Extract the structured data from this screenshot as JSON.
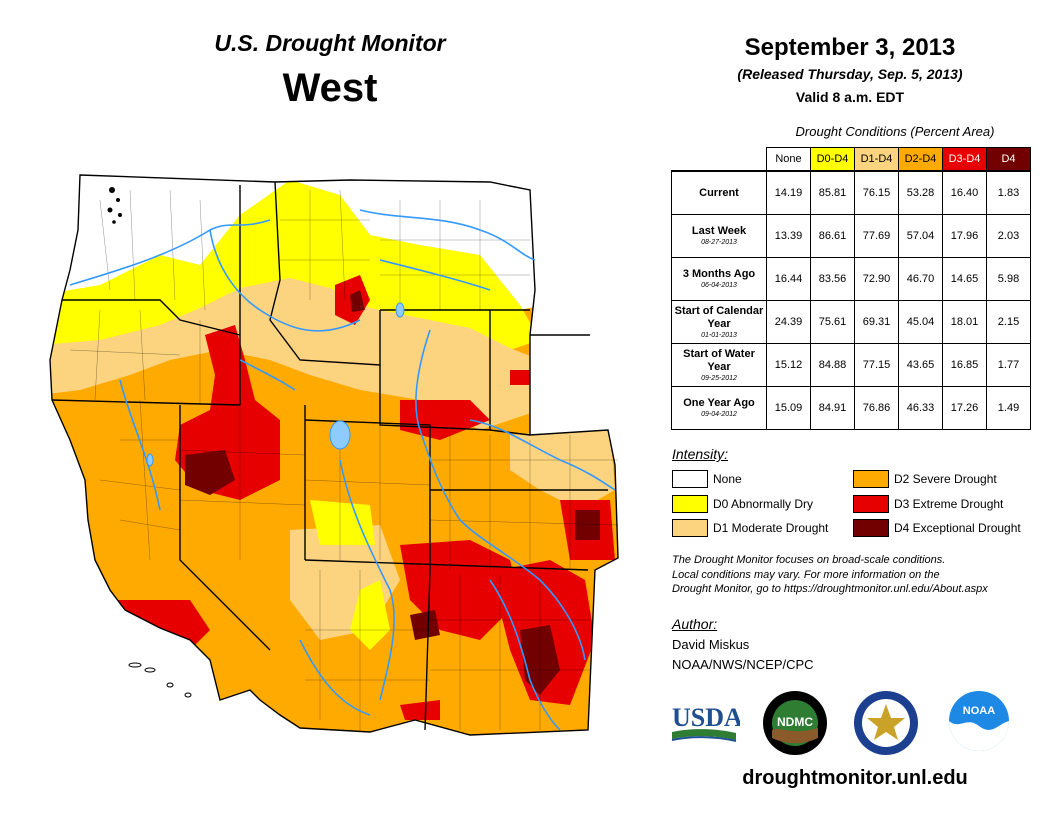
{
  "header": {
    "product": "U.S. Drought Monitor",
    "region": "West",
    "date": "September 3, 2013",
    "released": "(Released Thursday, Sep. 5, 2013)",
    "valid": "Valid 8 a.m. EDT"
  },
  "table": {
    "caption": "Drought Conditions (Percent Area)",
    "columns": [
      "None",
      "D0-D4",
      "D1-D4",
      "D2-D4",
      "D3-D4",
      "D4"
    ],
    "column_colors": [
      "#ffffff",
      "#ffff00",
      "#fcd37f",
      "#ffaa00",
      "#e60000",
      "#730000"
    ],
    "column_text_colors": [
      "#000000",
      "#000000",
      "#000000",
      "#000000",
      "#ffffff",
      "#ffffff"
    ],
    "rows": [
      {
        "label": "Current",
        "date": "",
        "values": [
          "14.19",
          "85.81",
          "76.15",
          "53.28",
          "16.40",
          "1.83"
        ]
      },
      {
        "label": "Last Week",
        "date": "08-27-2013",
        "values": [
          "13.39",
          "86.61",
          "77.69",
          "57.04",
          "17.96",
          "2.03"
        ]
      },
      {
        "label": "3 Months Ago",
        "date": "06-04-2013",
        "values": [
          "16.44",
          "83.56",
          "72.90",
          "46.70",
          "14.65",
          "5.98"
        ]
      },
      {
        "label": "Start of Calendar Year",
        "date": "01-01-2013",
        "values": [
          "24.39",
          "75.61",
          "69.31",
          "45.04",
          "18.01",
          "2.15"
        ]
      },
      {
        "label": "Start of Water Year",
        "date": "09-25-2012",
        "values": [
          "15.12",
          "84.88",
          "77.15",
          "43.65",
          "16.85",
          "1.77"
        ]
      },
      {
        "label": "One Year Ago",
        "date": "09-04-2012",
        "values": [
          "15.09",
          "84.91",
          "76.86",
          "46.33",
          "17.26",
          "1.49"
        ]
      }
    ]
  },
  "legend": {
    "title": "Intensity:",
    "items": [
      {
        "label": "None",
        "color": "#ffffff"
      },
      {
        "label": "D0 Abnormally Dry",
        "color": "#ffff00"
      },
      {
        "label": "D1 Moderate Drought",
        "color": "#fcd37f"
      },
      {
        "label": "D2 Severe Drought",
        "color": "#ffaa00"
      },
      {
        "label": "D3 Extreme Drought",
        "color": "#e60000"
      },
      {
        "label": "D4 Exceptional Drought",
        "color": "#730000"
      }
    ]
  },
  "note": {
    "line1": "The Drought Monitor focuses on broad-scale conditions.",
    "line2": "Local conditions may vary. For more information on the",
    "line3": "Drought Monitor, go to https://droughtmonitor.unl.edu/About.aspx"
  },
  "author": {
    "title": "Author:",
    "name": "David Miskus",
    "org": "NOAA/NWS/NCEP/CPC"
  },
  "logos": {
    "usda": "USDA",
    "ndmc": "NDMC",
    "noaa": "NOAA"
  },
  "footer": {
    "url": "droughtmonitor.unl.edu"
  },
  "colors": {
    "none": "#ffffff",
    "d0": "#ffff00",
    "d1": "#fcd37f",
    "d2": "#ffaa00",
    "d3": "#e60000",
    "d4": "#730000",
    "water": "#3399ff"
  }
}
